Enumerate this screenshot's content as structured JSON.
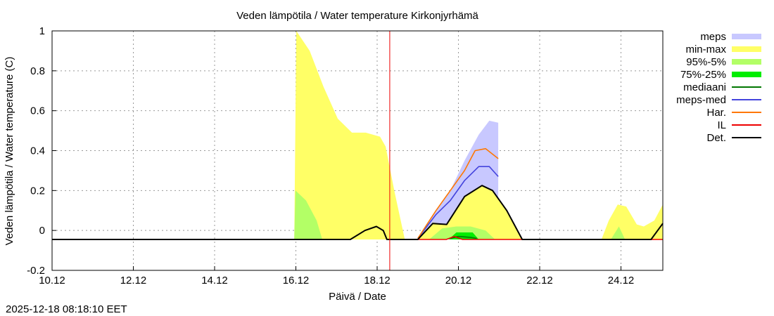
{
  "chart_data": {
    "type": "area",
    "title": "Veden lämpötila / Water temperature Kirkonjyrhämä",
    "xlabel": "Päivä / Date",
    "ylabel": "Veden lämpötila / Water temperature (C)",
    "xlim": [
      0,
      15.03
    ],
    "ylim": [
      -0.2,
      1
    ],
    "x_unit": "days since 10.12 00:00",
    "x_ticks": [
      {
        "x": 0,
        "label": "10.12"
      },
      {
        "x": 2,
        "label": "12.12"
      },
      {
        "x": 4,
        "label": "14.12"
      },
      {
        "x": 6,
        "label": "16.12"
      },
      {
        "x": 8,
        "label": "18.12"
      },
      {
        "x": 10,
        "label": "20.12"
      },
      {
        "x": 12,
        "label": "22.12"
      },
      {
        "x": 14,
        "label": "24.12"
      }
    ],
    "y_ticks": [
      {
        "y": 1,
        "label": "1"
      },
      {
        "y": 0.8,
        "label": "0.8"
      },
      {
        "y": 0.6,
        "label": "0.6"
      },
      {
        "y": 0.4,
        "label": "0.4"
      },
      {
        "y": 0.2,
        "label": "0.2"
      },
      {
        "y": 0,
        "label": "0"
      },
      {
        "y": -0.2,
        "label": "-0.2"
      }
    ],
    "grid": true,
    "now_marker": 8.31,
    "baseline": -0.045,
    "legend_position": "right-outside",
    "series": [
      {
        "name": "meps",
        "kind": "band",
        "color": "#c8c8ff",
        "upper": [
          [
            9.0,
            -0.04
          ],
          [
            9.45,
            0.1
          ],
          [
            9.8,
            0.2
          ],
          [
            10.15,
            0.35
          ],
          [
            10.5,
            0.48
          ],
          [
            10.76,
            0.55
          ],
          [
            10.98,
            0.54
          ]
        ],
        "lower": [
          [
            9.0,
            -0.045
          ],
          [
            10.98,
            -0.045
          ]
        ]
      },
      {
        "name": "min-max",
        "kind": "band",
        "color": "#ffff66",
        "upper": [
          [
            5.96,
            -0.045
          ],
          [
            6.01,
            1.0
          ],
          [
            6.34,
            0.9
          ],
          [
            6.68,
            0.72
          ],
          [
            7.03,
            0.56
          ],
          [
            7.38,
            0.49
          ],
          [
            7.72,
            0.49
          ],
          [
            8.07,
            0.47
          ],
          [
            8.21,
            0.42
          ],
          [
            8.42,
            0.2
          ],
          [
            8.68,
            -0.045
          ],
          [
            9.0,
            -0.045
          ],
          [
            9.37,
            0.04
          ],
          [
            9.71,
            0.03
          ],
          [
            10.15,
            0.17
          ],
          [
            10.58,
            0.225
          ],
          [
            10.84,
            0.2
          ],
          [
            11.19,
            0.1
          ],
          [
            11.57,
            -0.045
          ],
          [
            13.52,
            -0.045
          ],
          [
            13.7,
            0.05
          ],
          [
            13.92,
            0.13
          ],
          [
            14.13,
            0.12
          ],
          [
            14.39,
            0.03
          ],
          [
            14.56,
            0.02
          ],
          [
            14.82,
            0.05
          ],
          [
            15.03,
            0.13
          ]
        ],
        "lower": [
          [
            5.96,
            -0.045
          ],
          [
            15.03,
            -0.045
          ]
        ]
      },
      {
        "name": "95%-5%",
        "kind": "band",
        "color": "#b3ff66",
        "upper": [
          [
            5.96,
            -0.045
          ],
          [
            5.99,
            0.2
          ],
          [
            6.25,
            0.15
          ],
          [
            6.51,
            0.05
          ],
          [
            6.65,
            -0.045
          ],
          [
            9.28,
            -0.045
          ],
          [
            9.6,
            0.01
          ],
          [
            9.95,
            0.02
          ],
          [
            10.3,
            0.02
          ],
          [
            10.67,
            0.0
          ],
          [
            10.9,
            -0.045
          ],
          [
            13.75,
            -0.045
          ],
          [
            13.95,
            0.02
          ],
          [
            14.1,
            -0.045
          ]
        ],
        "lower": [
          [
            5.96,
            -0.045
          ],
          [
            14.1,
            -0.045
          ]
        ]
      },
      {
        "name": "75%-25%",
        "kind": "band",
        "color": "#00ee00",
        "upper": [
          [
            9.76,
            -0.045
          ],
          [
            9.95,
            -0.01
          ],
          [
            10.35,
            -0.01
          ],
          [
            10.5,
            -0.045
          ]
        ],
        "lower": [
          [
            9.76,
            -0.045
          ],
          [
            10.5,
            -0.045
          ]
        ]
      },
      {
        "name": "mediaani",
        "kind": "line",
        "color": "#007700",
        "points": [
          [
            9.8,
            -0.04
          ],
          [
            10.0,
            -0.03
          ],
          [
            10.3,
            -0.035
          ],
          [
            10.45,
            -0.04
          ]
        ]
      },
      {
        "name": "meps-med",
        "kind": "line",
        "color": "#4444dd",
        "points": [
          [
            9.0,
            -0.04
          ],
          [
            9.45,
            0.08
          ],
          [
            9.8,
            0.15
          ],
          [
            10.15,
            0.25
          ],
          [
            10.5,
            0.32
          ],
          [
            10.76,
            0.32
          ],
          [
            10.98,
            0.27
          ]
        ]
      },
      {
        "name": "Har.",
        "kind": "line",
        "color": "#ff7700",
        "points": [
          [
            9.0,
            -0.04
          ],
          [
            9.45,
            0.1
          ],
          [
            9.8,
            0.2
          ],
          [
            10.15,
            0.3
          ],
          [
            10.41,
            0.4
          ],
          [
            10.67,
            0.41
          ],
          [
            10.98,
            0.36
          ]
        ]
      },
      {
        "name": "IL",
        "kind": "line",
        "color": "#ee0000",
        "points": [
          [
            9.0,
            -0.045
          ],
          [
            9.7,
            -0.045
          ],
          [
            9.9,
            -0.03
          ],
          [
            10.1,
            -0.045
          ],
          [
            15.03,
            -0.045
          ]
        ]
      },
      {
        "name": "Det.",
        "kind": "line",
        "color": "#000000",
        "points": [
          [
            0,
            -0.045
          ],
          [
            7.34,
            -0.045
          ],
          [
            7.7,
            0.0
          ],
          [
            7.98,
            0.02
          ],
          [
            8.15,
            0.0
          ],
          [
            8.24,
            -0.045
          ],
          [
            9.0,
            -0.045
          ],
          [
            9.37,
            0.035
          ],
          [
            9.71,
            0.03
          ],
          [
            10.15,
            0.17
          ],
          [
            10.58,
            0.225
          ],
          [
            10.84,
            0.2
          ],
          [
            11.19,
            0.1
          ],
          [
            11.57,
            -0.045
          ],
          [
            14.74,
            -0.045
          ],
          [
            15.03,
            0.035
          ]
        ]
      }
    ],
    "timestamp": "2025-12-18 08:18:10 EET"
  }
}
